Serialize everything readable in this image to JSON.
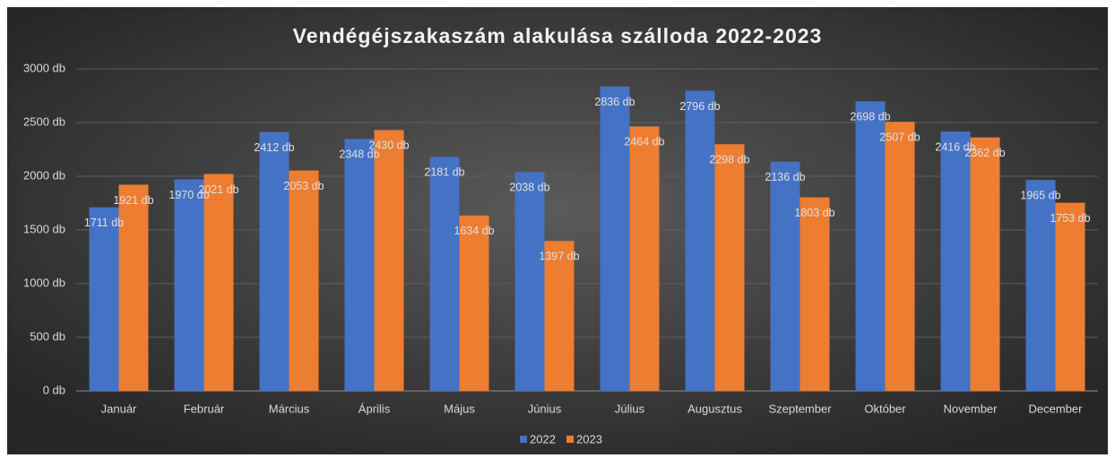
{
  "chart_data": {
    "type": "bar",
    "title": "Vendégéjszakaszám alakulása szálloda 2022-2023",
    "categories": [
      "Január",
      "Február",
      "Március",
      "Április",
      "Május",
      "Június",
      "Július",
      "Augusztus",
      "Szeptember",
      "Október",
      "November",
      "December"
    ],
    "series": [
      {
        "name": "2022",
        "color": "#4472c4",
        "values": [
          1711,
          1970,
          2412,
          2348,
          2181,
          2038,
          2836,
          2796,
          2136,
          2698,
          2416,
          1965
        ],
        "value_labels": [
          "1711 db",
          "1970 db",
          "2412 db",
          "2348 db",
          "2181 db",
          "2038 db",
          "2836 db",
          "2796 db",
          "2136 db",
          "2698 db",
          "2416 db",
          "1965 db"
        ]
      },
      {
        "name": "2023",
        "color": "#ed7d31",
        "values": [
          1921,
          2021,
          2053,
          2430,
          1634,
          1397,
          2464,
          2298,
          1803,
          2507,
          2362,
          1753
        ],
        "value_labels": [
          "1921 db",
          "2021 db",
          "2053 db",
          "2430 db",
          "1634 db",
          "1397 db",
          "2464 db",
          "2298 db",
          "1803 db",
          "2507 db",
          "2362 db",
          "1753 db"
        ]
      }
    ],
    "ylim": [
      0,
      3000
    ],
    "yticks": [
      {
        "value": 0,
        "label": "0 db"
      },
      {
        "value": 500,
        "label": "500 db"
      },
      {
        "value": 1000,
        "label": "1000 db"
      },
      {
        "value": 1500,
        "label": "1500 db"
      },
      {
        "value": 2000,
        "label": "2000 db"
      },
      {
        "value": 2500,
        "label": "2500 db"
      },
      {
        "value": 3000,
        "label": "3000 db"
      }
    ],
    "grid": true,
    "legend": "bottom"
  }
}
